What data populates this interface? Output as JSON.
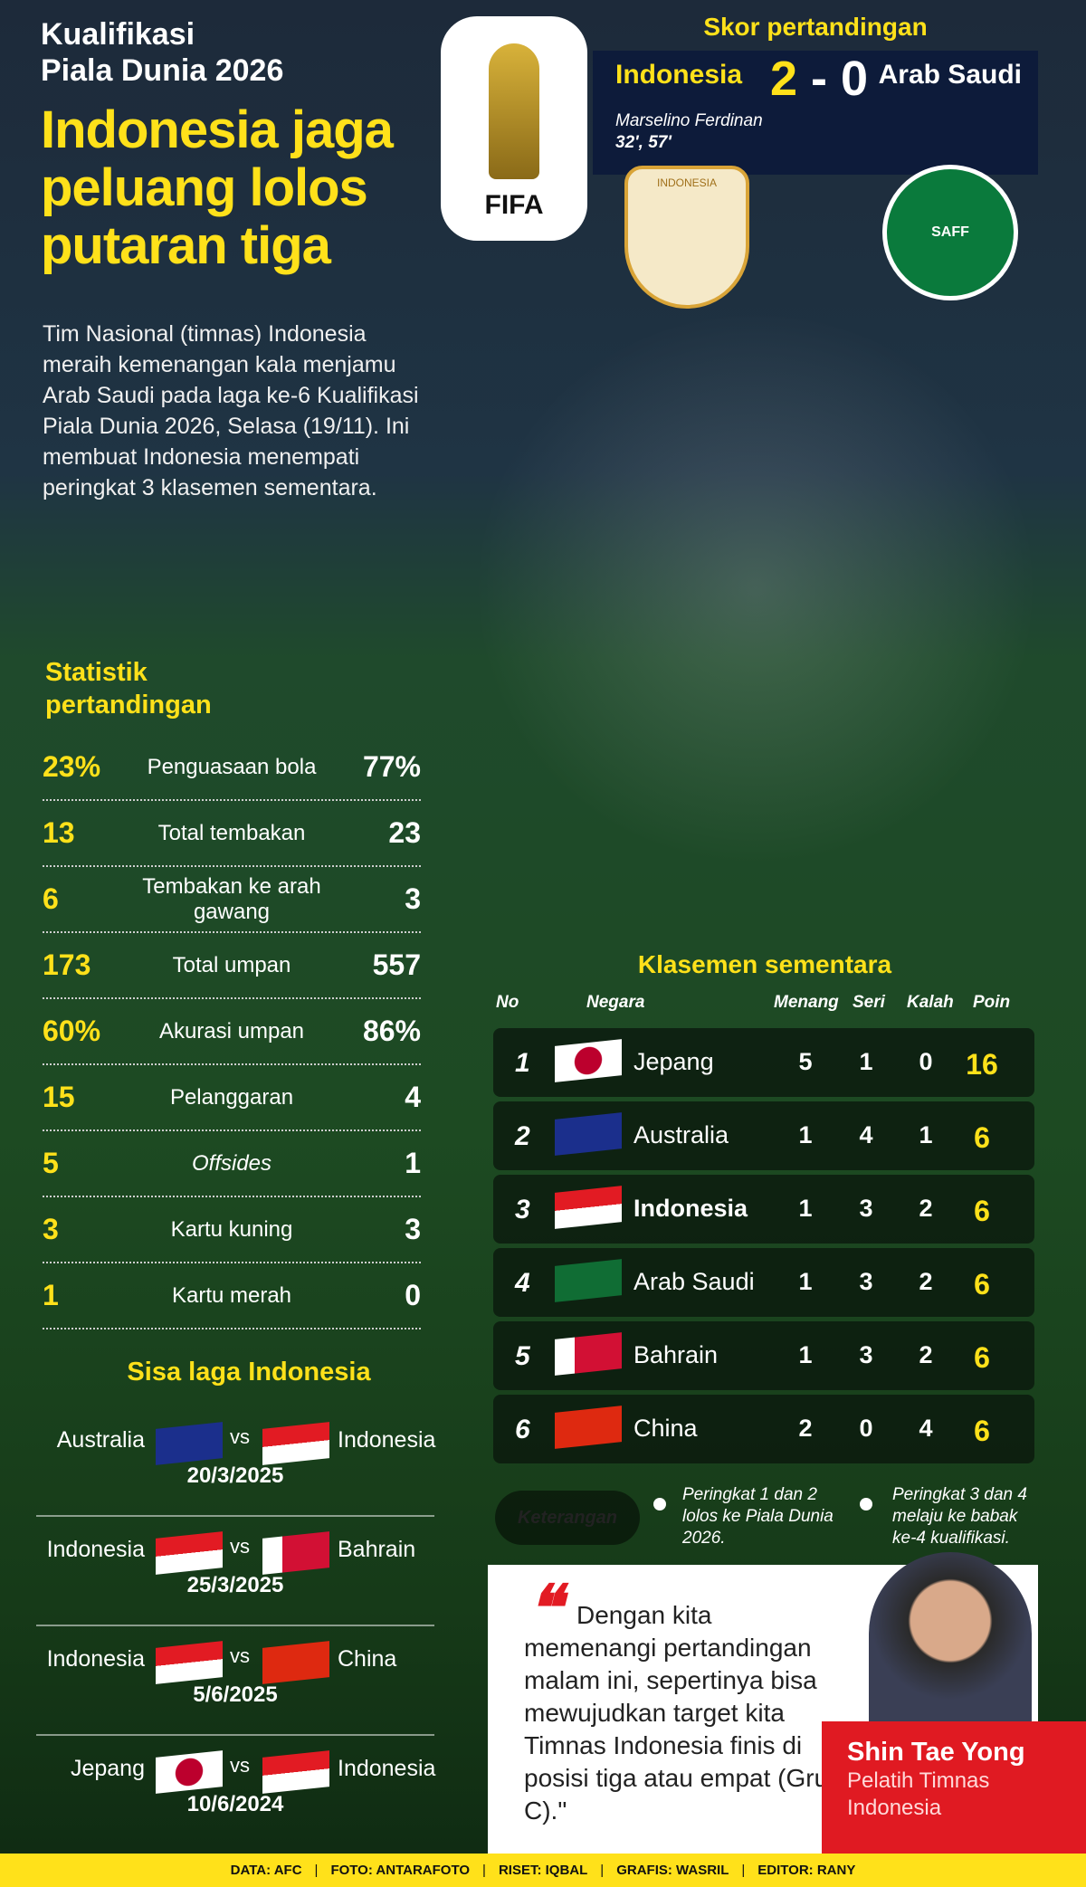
{
  "header": {
    "kicker_line1": "Kualifikasi",
    "kicker_line2": "Piala Dunia 2026",
    "headline": "Indonesia jaga peluang lolos putaran tiga",
    "logo": "FIFA"
  },
  "intro": "Tim Nasional (timnas) Indonesia meraih kemenangan kala menjamu Arab Saudi pada laga ke-6 Kualifikasi Piala Dunia 2026, Selasa (19/11). Ini membuat Indonesia menempati peringkat 3 klasemen sementara.",
  "score": {
    "title": "Skor pertandingan",
    "home": "Indonesia",
    "home_goals": "2",
    "sep": "-",
    "away_goals": "0",
    "away": "Arab Saudi",
    "scorer": "Marselino Ferdinan",
    "minutes": "32', 57'",
    "home_crest": "INDONESIA",
    "away_crest": "SAFF"
  },
  "stats": {
    "title": "Statistik pertandingan",
    "rows": [
      {
        "l": "23%",
        "label": "Penguasaan bola",
        "r": "77%"
      },
      {
        "l": "13",
        "label": "Total tembakan",
        "r": "23"
      },
      {
        "l": "6",
        "label": "Tembakan ke arah gawang",
        "r": "3"
      },
      {
        "l": "173",
        "label": "Total umpan",
        "r": "557"
      },
      {
        "l": "60%",
        "label": "Akurasi umpan",
        "r": "86%"
      },
      {
        "l": "15",
        "label": "Pelanggaran",
        "r": "4"
      },
      {
        "l": "5",
        "label": "Offsides",
        "r": "1"
      },
      {
        "l": "3",
        "label": "Kartu kuning",
        "r": "3"
      },
      {
        "l": "1",
        "label": "Kartu merah",
        "r": "0"
      }
    ]
  },
  "remaining": {
    "title": "Sisa laga Indonesia",
    "vs": "vs",
    "matches": [
      {
        "home": "Australia",
        "away": "Indonesia",
        "date": "20/3/2025",
        "hf": "au",
        "af": "id"
      },
      {
        "home": "Indonesia",
        "away": "Bahrain",
        "date": "25/3/2025",
        "hf": "id",
        "af": "bh"
      },
      {
        "home": "Indonesia",
        "away": "China",
        "date": "5/6/2025",
        "hf": "id",
        "af": "cn"
      },
      {
        "home": "Jepang",
        "away": "Indonesia",
        "date": "10/6/2024",
        "hf": "jp",
        "af": "id"
      }
    ]
  },
  "standings": {
    "title": "Klasemen sementara",
    "headers": {
      "no": "No",
      "country": "Negara",
      "w": "Menang",
      "d": "Seri",
      "l": "Kalah",
      "pts": "Poin"
    },
    "rows": [
      {
        "no": "1",
        "name": "Jepang",
        "w": "5",
        "d": "1",
        "l": "0",
        "pts": "16",
        "flag": "jp"
      },
      {
        "no": "2",
        "name": "Australia",
        "w": "1",
        "d": "4",
        "l": "1",
        "pts": "6",
        "flag": "au"
      },
      {
        "no": "3",
        "name": "Indonesia",
        "w": "1",
        "d": "3",
        "l": "2",
        "pts": "6",
        "flag": "id"
      },
      {
        "no": "4",
        "name": "Arab Saudi",
        "w": "1",
        "d": "3",
        "l": "2",
        "pts": "6",
        "flag": "sa"
      },
      {
        "no": "5",
        "name": "Bahrain",
        "w": "1",
        "d": "3",
        "l": "2",
        "pts": "6",
        "flag": "bh"
      },
      {
        "no": "6",
        "name": "China",
        "w": "2",
        "d": "0",
        "l": "4",
        "pts": "6",
        "flag": "cn"
      }
    ],
    "legend_label": "Keterangan",
    "note1": "Peringkat 1 dan 2 lolos ke Piala Dunia 2026.",
    "note2": "Peringkat 3 dan 4 melaju ke babak ke-4 kualifikasi."
  },
  "quote": {
    "text": "Dengan kita memenangi pertandingan malam ini, sepertinya bisa mewujudkan target kita Timnas Indonesia finis di posisi tiga atau empat (Grup C).\"",
    "name": "Shin Tae Yong",
    "role": "Pelatih Timnas Indonesia"
  },
  "footer": [
    "DATA: AFC",
    "FOTO: ANTARAFOTO",
    "RISET: IQBAL",
    "GRAFIS: WASRIL",
    "EDITOR: RANY"
  ],
  "colors": {
    "accent": "#ffe11a",
    "red": "#e01a22",
    "navy": "#0d1b3a"
  }
}
